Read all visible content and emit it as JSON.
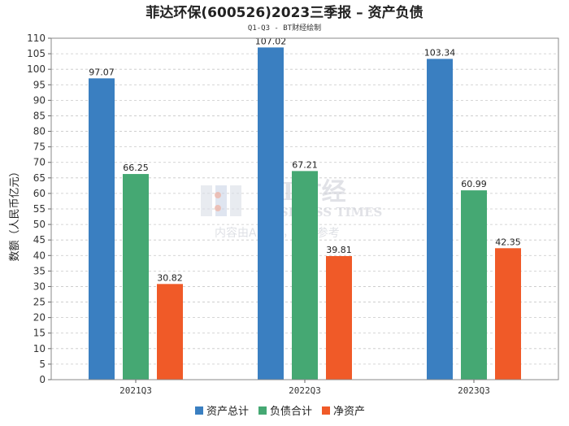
{
  "chart_data": {
    "type": "bar",
    "title": "菲达环保(600526)2023三季报 – 资产负债",
    "subtitle": "Q1-Q3 - BT财经绘制",
    "xlabel": "",
    "ylabel": "数额（人民币亿元）",
    "ylim": [
      0,
      110
    ],
    "ytick_step": 5,
    "grid": true,
    "legend_position": "bottom",
    "categories": [
      "2021Q3",
      "2022Q3",
      "2023Q3"
    ],
    "series": [
      {
        "name": "资产总计",
        "color": "#3a7fc1",
        "values": [
          97.07,
          107.02,
          103.34
        ],
        "labels": [
          "97.07",
          "107.02",
          "103.34"
        ]
      },
      {
        "name": "负债合计",
        "color": "#45a873",
        "values": [
          66.25,
          67.21,
          60.99
        ],
        "labels": [
          "66.25",
          "67.21",
          "60.99"
        ]
      },
      {
        "name": "净资产",
        "color": "#f05a28",
        "values": [
          30.82,
          39.81,
          42.35
        ],
        "labels": [
          "30.82",
          "39.81",
          "42.35"
        ]
      }
    ]
  },
  "watermark": {
    "brand": "BT财经",
    "brand_en": "BUSINESS TIMES",
    "notice": "内容由AI生成，仅供参考"
  }
}
